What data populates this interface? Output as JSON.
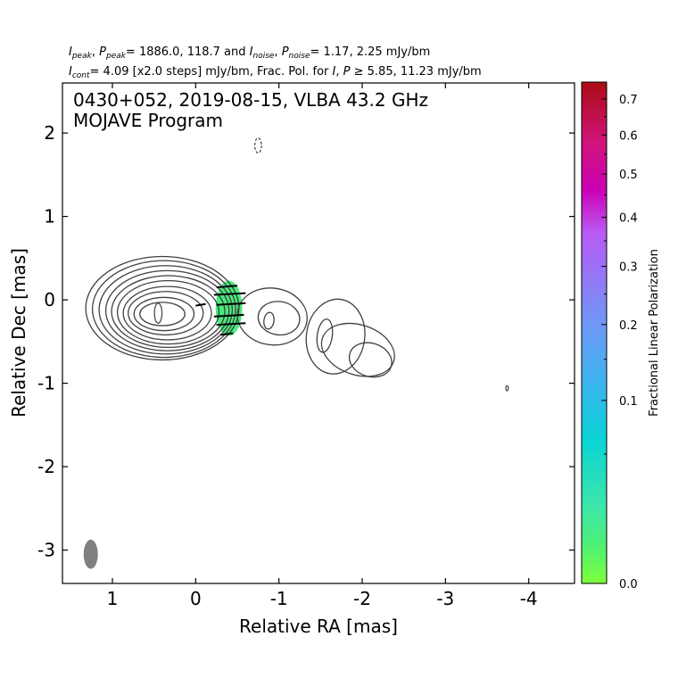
{
  "chart_data": {
    "type": "contour",
    "header": {
      "line1": {
        "i": "I",
        "i_sub": "peak",
        "p": "P",
        "p_sub": "peak",
        "peak_values": "= 1886.0, 118.7 and ",
        "i2": "I",
        "i2_sub": "noise",
        "p2": "P",
        "p2_sub": "noise",
        "noise_values": "= 1.17, 2.25 mJy/bm"
      },
      "line2": {
        "i": "I",
        "i_sub": "cont",
        "text_a": "= 4.09 [x2.0 steps] mJy/bm, Frac. Pol. for ",
        "i2": "I",
        "sep": ", ",
        "p2": "P",
        "text_b": " ≥  5.85, 11.23 mJy/bm"
      }
    },
    "title_line1": "0430+052, 2019-08-15, VLBA 43.2 GHz",
    "title_line2": "MOJAVE Program",
    "xlabel": "Relative RA [mas]",
    "ylabel": "Relative Dec [mas]",
    "xlim": [
      1.6,
      -4.55
    ],
    "ylim": [
      -3.4,
      2.6
    ],
    "xticks": [
      1,
      0,
      -1,
      -2,
      -3,
      -4
    ],
    "xtick_labels": [
      "1",
      "0",
      "-1",
      "-2",
      "-3",
      "-4"
    ],
    "yticks": [
      2,
      1,
      0,
      -1,
      -2,
      -3
    ],
    "ytick_labels": [
      "2",
      "1",
      "0",
      "-1",
      "-2",
      "-3"
    ],
    "contour_base_mJy_per_beam": 4.09,
    "contour_step_factor": 2.0,
    "contours": {
      "core": [
        {
          "cx": 0.4,
          "cy": -0.1,
          "rx": 0.92,
          "ry": 0.62
        },
        {
          "cx": 0.38,
          "cy": -0.11,
          "rx": 0.86,
          "ry": 0.58
        },
        {
          "cx": 0.36,
          "cy": -0.12,
          "rx": 0.8,
          "ry": 0.53
        },
        {
          "cx": 0.34,
          "cy": -0.13,
          "rx": 0.74,
          "ry": 0.48
        },
        {
          "cx": 0.33,
          "cy": -0.14,
          "rx": 0.68,
          "ry": 0.43
        },
        {
          "cx": 0.33,
          "cy": -0.15,
          "rx": 0.61,
          "ry": 0.38
        },
        {
          "cx": 0.34,
          "cy": -0.16,
          "rx": 0.53,
          "ry": 0.32
        },
        {
          "cx": 0.36,
          "cy": -0.16,
          "rx": 0.45,
          "ry": 0.26
        },
        {
          "cx": 0.38,
          "cy": -0.17,
          "rx": 0.36,
          "ry": 0.2
        },
        {
          "cx": 0.4,
          "cy": -0.17,
          "rx": 0.27,
          "ry": 0.14
        }
      ],
      "jet_knots": [
        {
          "cx": -0.92,
          "cy": -0.2,
          "rx": 0.42,
          "ry": 0.34
        },
        {
          "cx": -1.0,
          "cy": -0.22,
          "rx": 0.25,
          "ry": 0.2
        },
        {
          "cx": -0.88,
          "cy": -0.25,
          "rx": 0.06,
          "ry": 0.1
        },
        {
          "cx": -1.95,
          "cy": -0.6,
          "rx": 0.45,
          "ry": 0.3
        },
        {
          "cx": -1.68,
          "cy": -0.44,
          "rx": 0.35,
          "ry": 0.45
        },
        {
          "cx": -1.55,
          "cy": -0.43,
          "rx": 0.09,
          "ry": 0.2
        },
        {
          "cx": -2.1,
          "cy": -0.72,
          "rx": 0.26,
          "ry": 0.2
        }
      ],
      "isolated": [
        {
          "cx": 0.45,
          "cy": -0.16,
          "rx": 0.045,
          "ry": 0.12,
          "dashed": false
        },
        {
          "cx": -0.75,
          "cy": 1.85,
          "rx": 0.04,
          "ry": 0.09,
          "dashed": true
        },
        {
          "cx": -3.74,
          "cy": -1.06,
          "rx": 0.015,
          "ry": 0.03,
          "dashed": false
        }
      ]
    },
    "polarization": {
      "region": {
        "cx": -0.4,
        "cy": -0.1,
        "rx": 0.16,
        "ry": 0.33
      },
      "fractional_value": 0.06,
      "evpa_ticks": [
        {
          "x0": -0.25,
          "x1": -0.5,
          "y": 0.15
        },
        {
          "x0": -0.22,
          "x1": -0.6,
          "y": 0.06
        },
        {
          "x0": -0.25,
          "x1": -0.6,
          "y": -0.06
        },
        {
          "x0": -0.22,
          "x1": -0.58,
          "y": -0.2
        },
        {
          "x0": -0.25,
          "x1": -0.6,
          "y": -0.3
        },
        {
          "x0": -0.3,
          "x1": -0.45,
          "y": -0.42
        },
        {
          "x0": -0.0,
          "x1": -0.12,
          "y": -0.07
        }
      ]
    },
    "beam": {
      "x": 1.26,
      "y": -3.05,
      "width_mas": 0.15,
      "height_mas": 0.35,
      "color": "#808080"
    },
    "colorbar": {
      "label": "Fractional Linear Polarization",
      "range": [
        0.0,
        0.75
      ],
      "scale": "sqrt",
      "tick_values": [
        0.0,
        0.1,
        0.2,
        0.3,
        0.4,
        0.5,
        0.6,
        0.7
      ],
      "tick_labels": [
        "0.0",
        "0.1",
        "0.2",
        "0.3",
        "0.4",
        "0.5",
        "0.6",
        "0.7"
      ],
      "colors": [
        "#7fff3b",
        "#3ee6a8",
        "#0ad4d4",
        "#57a6f5",
        "#9972f6",
        "#b95bf4",
        "#cc00b4",
        "#d0147a",
        "#aa0b14"
      ]
    },
    "colors": {
      "contour": "#404040",
      "axes": "#000000"
    }
  }
}
